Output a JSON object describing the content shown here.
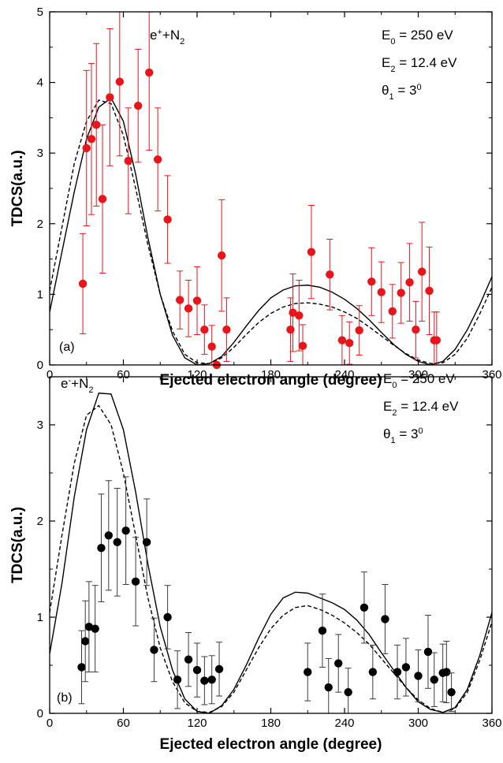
{
  "chart_data": [
    {
      "type": "scatter",
      "panel_label": "(a)",
      "projectile": {
        "main": "e",
        "sup": "+",
        "rest": "+N",
        "sub": "2"
      },
      "params": [
        {
          "sym": "E",
          "sub": "0",
          "text": " = 250 eV"
        },
        {
          "sym": "E",
          "sub": "2",
          "text": " = 12.4 eV"
        },
        {
          "sym": "θ",
          "sub": "1",
          "text": " = 3",
          "sup": "0"
        }
      ],
      "xlabel": "Ejected electron angle (degree)",
      "ylabel": "TDCS(a.u.)",
      "xlim": [
        0,
        360
      ],
      "ylim": [
        0,
        5
      ],
      "xticks": [
        0,
        60,
        120,
        180,
        240,
        300,
        360
      ],
      "yticks": [
        0,
        1,
        2,
        3,
        4,
        5
      ],
      "marker_color": "#e8151b",
      "errorbar_color": "#e8151b",
      "points": [
        {
          "x": 27,
          "y": 1.15,
          "err": 0.71
        },
        {
          "x": 30,
          "y": 3.07,
          "err": 1.1
        },
        {
          "x": 34,
          "y": 3.2,
          "err": 1.07
        },
        {
          "x": 38,
          "y": 3.4,
          "err": 1.15
        },
        {
          "x": 43,
          "y": 2.35,
          "err": 1.05
        },
        {
          "x": 49,
          "y": 3.79,
          "err": 0.97
        },
        {
          "x": 57,
          "y": 4.01,
          "err": 1.05
        },
        {
          "x": 64,
          "y": 2.89,
          "err": 0.75
        },
        {
          "x": 72,
          "y": 3.67,
          "err": 0.8
        },
        {
          "x": 81,
          "y": 4.14,
          "err": 1.1
        },
        {
          "x": 88,
          "y": 2.91,
          "err": 0.73
        },
        {
          "x": 96,
          "y": 2.06,
          "err": 0.62
        },
        {
          "x": 106,
          "y": 0.92,
          "err": 0.41
        },
        {
          "x": 113,
          "y": 0.8,
          "err": 0.4
        },
        {
          "x": 120,
          "y": 0.91,
          "err": 0.48
        },
        {
          "x": 126,
          "y": 0.5,
          "err": 0.35
        },
        {
          "x": 132,
          "y": 0.26,
          "err": 0.3
        },
        {
          "x": 136,
          "y": 0.0,
          "err": 0.0
        },
        {
          "x": 140,
          "y": 1.55,
          "err": 0.79
        },
        {
          "x": 144,
          "y": 0.5,
          "err": 0.45
        },
        {
          "x": 196,
          "y": 0.5,
          "err": 0.45
        },
        {
          "x": 198,
          "y": 0.74,
          "err": 0.55
        },
        {
          "x": 203,
          "y": 0.7,
          "err": 0.5
        },
        {
          "x": 206,
          "y": 0.27,
          "err": 0.3
        },
        {
          "x": 213,
          "y": 1.6,
          "err": 0.66
        },
        {
          "x": 228,
          "y": 1.28,
          "err": 0.5
        },
        {
          "x": 238,
          "y": 0.35,
          "err": 0.35
        },
        {
          "x": 244,
          "y": 0.31,
          "err": 0.3
        },
        {
          "x": 252,
          "y": 0.49,
          "err": 0.35
        },
        {
          "x": 262,
          "y": 1.18,
          "err": 0.48
        },
        {
          "x": 270,
          "y": 1.03,
          "err": 0.43
        },
        {
          "x": 279,
          "y": 0.76,
          "err": 0.38
        },
        {
          "x": 286,
          "y": 1.02,
          "err": 0.43
        },
        {
          "x": 293,
          "y": 1.17,
          "err": 0.55
        },
        {
          "x": 298,
          "y": 0.5,
          "err": 0.4
        },
        {
          "x": 303,
          "y": 1.32,
          "err": 0.7
        },
        {
          "x": 309,
          "y": 1.05,
          "err": 0.62
        },
        {
          "x": 313,
          "y": 0.35,
          "err": 0.4
        },
        {
          "x": 315,
          "y": 0.35,
          "err": 0.4
        }
      ],
      "series": [
        {
          "style": "solid",
          "x": [
            0,
            10,
            20,
            30,
            40,
            50,
            60,
            70,
            80,
            90,
            100,
            110,
            120,
            130,
            140,
            150,
            160,
            170,
            180,
            190,
            200,
            210,
            220,
            230,
            240,
            250,
            260,
            270,
            280,
            290,
            300,
            310,
            320,
            330,
            340,
            350,
            360
          ],
          "y": [
            0.75,
            1.6,
            2.45,
            3.2,
            3.65,
            3.78,
            3.45,
            2.7,
            1.8,
            1.0,
            0.42,
            0.1,
            0.0,
            0.02,
            0.12,
            0.32,
            0.55,
            0.77,
            0.95,
            1.06,
            1.12,
            1.13,
            1.1,
            1.03,
            0.93,
            0.8,
            0.64,
            0.46,
            0.29,
            0.15,
            0.05,
            0.0,
            0.05,
            0.22,
            0.5,
            0.85,
            1.25
          ]
        },
        {
          "style": "dashed",
          "x": [
            0,
            10,
            20,
            30,
            40,
            50,
            60,
            70,
            80,
            90,
            100,
            110,
            120,
            130,
            140,
            150,
            160,
            170,
            180,
            190,
            200,
            210,
            220,
            230,
            240,
            250,
            260,
            270,
            280,
            290,
            300,
            310,
            320,
            330,
            340,
            350,
            360
          ],
          "y": [
            1.05,
            1.95,
            2.85,
            3.45,
            3.75,
            3.7,
            3.25,
            2.5,
            1.7,
            1.0,
            0.48,
            0.15,
            0.03,
            0.02,
            0.1,
            0.25,
            0.43,
            0.6,
            0.73,
            0.82,
            0.87,
            0.88,
            0.86,
            0.82,
            0.75,
            0.66,
            0.54,
            0.41,
            0.28,
            0.16,
            0.07,
            0.02,
            0.03,
            0.15,
            0.38,
            0.72,
            1.1
          ]
        }
      ]
    },
    {
      "type": "scatter",
      "panel_label": "(b)",
      "projectile": {
        "main": "e",
        "sup": "-",
        "rest": "+N",
        "sub": "2"
      },
      "params": [
        {
          "sym": "E",
          "sub": "0",
          "text": " = 250 eV"
        },
        {
          "sym": "E",
          "sub": "2",
          "text": " = 12.4 eV"
        },
        {
          "sym": "θ",
          "sub": "1",
          "text": " = 3",
          "sup": "0"
        }
      ],
      "xlabel": "Ejected electron angle (degree)",
      "ylabel": "TDCS(a.u.)",
      "xlim": [
        0,
        360
      ],
      "ylim": [
        0,
        3.5
      ],
      "xticks": [
        0,
        60,
        120,
        180,
        240,
        300,
        360
      ],
      "yticks": [
        0,
        1,
        2,
        3
      ],
      "marker_color": "#000000",
      "errorbar_color": "#3a3a3a",
      "points": [
        {
          "x": 26,
          "y": 0.48,
          "err": 0.38
        },
        {
          "x": 29,
          "y": 0.75,
          "err": 0.42
        },
        {
          "x": 32,
          "y": 0.9,
          "err": 0.47
        },
        {
          "x": 37,
          "y": 0.88,
          "err": 0.45
        },
        {
          "x": 42,
          "y": 1.72,
          "err": 0.56
        },
        {
          "x": 48,
          "y": 1.85,
          "err": 0.57
        },
        {
          "x": 55,
          "y": 1.78,
          "err": 0.56
        },
        {
          "x": 62,
          "y": 1.9,
          "err": 0.56
        },
        {
          "x": 70,
          "y": 1.37,
          "err": 0.46
        },
        {
          "x": 79,
          "y": 1.78,
          "err": 0.45
        },
        {
          "x": 85,
          "y": 0.66,
          "err": 0.33
        },
        {
          "x": 96,
          "y": 1.0,
          "err": 0.33
        },
        {
          "x": 104,
          "y": 0.35,
          "err": 0.3
        },
        {
          "x": 113,
          "y": 0.56,
          "err": 0.28
        },
        {
          "x": 120,
          "y": 0.45,
          "err": 0.28
        },
        {
          "x": 126,
          "y": 0.34,
          "err": 0.25
        },
        {
          "x": 132,
          "y": 0.35,
          "err": 0.25
        },
        {
          "x": 138,
          "y": 0.46,
          "err": 0.28
        },
        {
          "x": 210,
          "y": 0.43,
          "err": 0.3
        },
        {
          "x": 222,
          "y": 0.86,
          "err": 0.38
        },
        {
          "x": 227,
          "y": 0.27,
          "err": 0.3
        },
        {
          "x": 235,
          "y": 0.52,
          "err": 0.3
        },
        {
          "x": 243,
          "y": 0.22,
          "err": 0.25
        },
        {
          "x": 256,
          "y": 1.1,
          "err": 0.37
        },
        {
          "x": 263,
          "y": 0.43,
          "err": 0.28
        },
        {
          "x": 273,
          "y": 0.98,
          "err": 0.36
        },
        {
          "x": 283,
          "y": 0.43,
          "err": 0.28
        },
        {
          "x": 290,
          "y": 0.48,
          "err": 0.3
        },
        {
          "x": 300,
          "y": 0.39,
          "err": 0.27
        },
        {
          "x": 308,
          "y": 0.64,
          "err": 0.38
        },
        {
          "x": 313,
          "y": 0.35,
          "err": 0.28
        },
        {
          "x": 320,
          "y": 0.42,
          "err": 0.3
        },
        {
          "x": 323,
          "y": 0.43,
          "err": 0.32
        },
        {
          "x": 327,
          "y": 0.22,
          "err": 0.2
        }
      ],
      "series": [
        {
          "style": "solid",
          "x": [
            0,
            10,
            20,
            30,
            40,
            50,
            60,
            70,
            80,
            90,
            100,
            110,
            120,
            130,
            140,
            150,
            160,
            170,
            180,
            190,
            200,
            210,
            220,
            230,
            240,
            250,
            260,
            270,
            280,
            290,
            300,
            310,
            320,
            330,
            340,
            350,
            360
          ],
          "y": [
            0.62,
            1.35,
            2.25,
            2.95,
            3.33,
            3.32,
            2.95,
            2.3,
            1.55,
            0.9,
            0.45,
            0.15,
            0.02,
            0.0,
            0.08,
            0.25,
            0.5,
            0.78,
            1.03,
            1.2,
            1.26,
            1.25,
            1.2,
            1.15,
            1.08,
            0.97,
            0.82,
            0.63,
            0.45,
            0.27,
            0.12,
            0.04,
            0.01,
            0.06,
            0.25,
            0.6,
            1.05
          ]
        },
        {
          "style": "dashed",
          "x": [
            0,
            10,
            20,
            30,
            40,
            50,
            60,
            70,
            80,
            90,
            100,
            110,
            120,
            130,
            140,
            150,
            160,
            170,
            180,
            190,
            200,
            210,
            220,
            230,
            240,
            250,
            260,
            270,
            280,
            290,
            300,
            310,
            320,
            330,
            340,
            350,
            360
          ],
          "y": [
            1.05,
            1.85,
            2.6,
            3.1,
            3.2,
            3.0,
            2.5,
            1.85,
            1.2,
            0.68,
            0.33,
            0.11,
            0.02,
            0.01,
            0.07,
            0.22,
            0.45,
            0.68,
            0.88,
            1.02,
            1.1,
            1.12,
            1.08,
            1.02,
            0.94,
            0.84,
            0.72,
            0.57,
            0.42,
            0.27,
            0.14,
            0.05,
            0.01,
            0.05,
            0.22,
            0.55,
            0.95
          ]
        }
      ]
    }
  ]
}
